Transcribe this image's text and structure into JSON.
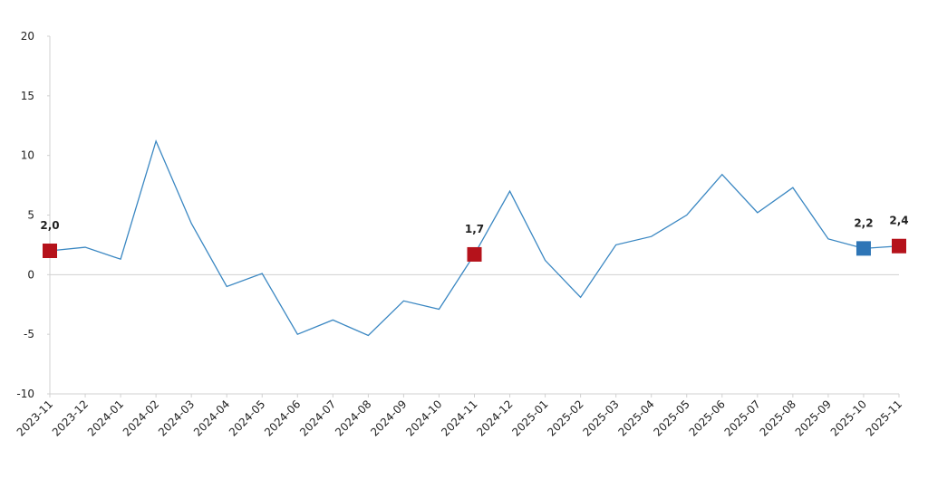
{
  "chart_data": {
    "type": "line",
    "categories": [
      "2023-11",
      "2023-12",
      "2024-01",
      "2024-02",
      "2024-03",
      "2024-04",
      "2024-05",
      "2024-06",
      "2024-07",
      "2024-08",
      "2024-09",
      "2024-10",
      "2024-11",
      "2024-12",
      "2025-01",
      "2025-02",
      "2025-03",
      "2025-04",
      "2025-05",
      "2025-06",
      "2025-07",
      "2025-08",
      "2025-09",
      "2025-10",
      "2025-11"
    ],
    "values": [
      2.0,
      2.3,
      1.3,
      11.2,
      4.3,
      -1.0,
      0.1,
      -5.0,
      -3.8,
      -5.1,
      -2.2,
      -2.9,
      1.7,
      7.0,
      1.2,
      -1.9,
      2.5,
      3.2,
      5.0,
      8.4,
      5.2,
      7.3,
      3.0,
      2.2,
      2.4
    ],
    "value_labels": [
      "2,0",
      null,
      null,
      null,
      null,
      null,
      null,
      null,
      null,
      null,
      null,
      null,
      "1,7",
      null,
      null,
      null,
      null,
      null,
      null,
      null,
      null,
      null,
      null,
      "2,2",
      "2,4"
    ],
    "marker_colors": [
      "#b5121b",
      null,
      null,
      null,
      null,
      null,
      null,
      null,
      null,
      null,
      null,
      null,
      "#b5121b",
      null,
      null,
      null,
      null,
      null,
      null,
      null,
      null,
      null,
      null,
      "#2e75b6",
      "#b5121b"
    ],
    "color": "#3a87c2",
    "ylim": [
      -10,
      20
    ],
    "yticks": [
      -10,
      -5,
      0,
      5,
      10,
      15,
      20
    ],
    "grid": false
  }
}
